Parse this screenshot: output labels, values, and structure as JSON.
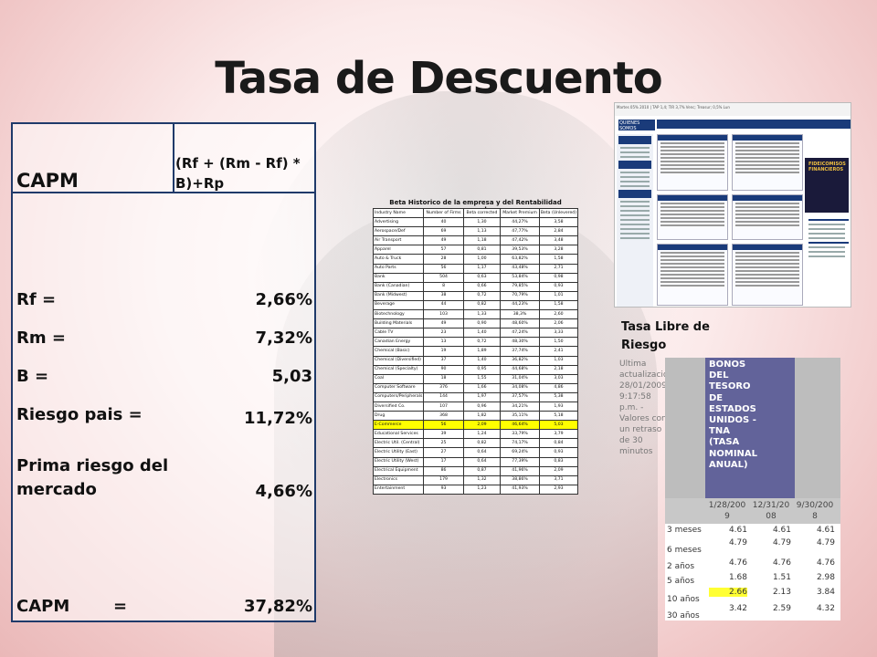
{
  "title": "Tasa de Descuento",
  "capm": {
    "header_label": "CAPM",
    "formula": "(Rf + (Rm - Rf) * B)+Rp",
    "rows": [
      {
        "label": "Rf =",
        "value": "2,66%"
      },
      {
        "label": "Rm =",
        "value": "7,32%"
      },
      {
        "label": "B =",
        "value": "5,03"
      },
      {
        "label": "Riesgo pais =",
        "value": "11,72%"
      },
      {
        "label": "Prima riesgo del mercado",
        "value": "4,66%"
      }
    ],
    "result_label": "CAPM",
    "result_eq": "=",
    "result_value": "37,82%"
  },
  "beta_table": {
    "title": "Beta Historico de la empresa y del Rentabilidad mercado",
    "headers": [
      "Industry Name",
      "Number of Firms",
      "Beta corrected",
      "Market Premium",
      "Beta (Unlevered)"
    ],
    "rows": [
      [
        "Advertising",
        "40",
        "1,30",
        "44,27%",
        "3,58"
      ],
      [
        "Aerospace/Def",
        "69",
        "1,13",
        "47,77%",
        "2,84"
      ],
      [
        "Air Transport",
        "49",
        "1,18",
        "47,42%",
        "3,48"
      ],
      [
        "Apparel",
        "57",
        "0,81",
        "39,53%",
        "3,28"
      ],
      [
        "Auto & Truck",
        "28",
        "1,00",
        "63,82%",
        "1,58"
      ],
      [
        "Auto Parts",
        "56",
        "1,17",
        "43,48%",
        "2,71"
      ],
      [
        "Bank",
        "504",
        "0,63",
        "53,84%",
        "0,98"
      ],
      [
        "Bank (Canadian)",
        "8",
        "0,66",
        "79,85%",
        "0,93"
      ],
      [
        "Bank (Midwest)",
        "38",
        "0,72",
        "70,79%",
        "1,01"
      ],
      [
        "Beverage",
        "44",
        "0,82",
        "44,23%",
        "1,58"
      ],
      [
        "Biotechnology",
        "103",
        "1,33",
        "38,3%",
        "2,60"
      ],
      [
        "Building Materials",
        "49",
        "0,90",
        "48,60%",
        "2,06"
      ],
      [
        "Cable TV",
        "23",
        "1,40",
        "47,24%",
        "3,33"
      ],
      [
        "Canadian Energy",
        "13",
        "0,72",
        "48,30%",
        "1,50"
      ],
      [
        "Chemical (Basic)",
        "19",
        "1,89",
        "37,74%",
        "2,41"
      ],
      [
        "Chemical (Diversified)",
        "37",
        "1,40",
        "36,82%",
        "1,03"
      ],
      [
        "Chemical (Specialty)",
        "90",
        "0,95",
        "44,68%",
        "2,18"
      ],
      [
        "Coal",
        "18",
        "1,55",
        "31,04%",
        "3,03"
      ],
      [
        "Computer Software",
        "376",
        "1,66",
        "34,08%",
        "4,86"
      ],
      [
        "Computers/Peripherals",
        "144",
        "1,97",
        "37,57%",
        "5,38"
      ],
      [
        "Diversified Co.",
        "107",
        "0,96",
        "34,21%",
        "1,93"
      ],
      [
        "Drug",
        "368",
        "1,82",
        "35,11%",
        "5,18"
      ],
      [
        "E-Commerce",
        "56",
        "2,09",
        "46,64%",
        "5,03"
      ],
      [
        "Educational Services",
        "39",
        "1,24",
        "33,79%",
        "3,79"
      ],
      [
        "Electric Util. (Central)",
        "25",
        "0,82",
        "74,17%",
        "0,84"
      ],
      [
        "Electric Utility (East)",
        "27",
        "0,64",
        "69,24%",
        "0,93"
      ],
      [
        "Electric Utility (West)",
        "17",
        "0,64",
        "77,39%",
        "0,83"
      ],
      [
        "Electrical Equipment",
        "86",
        "0,87",
        "41,96%",
        "2,09"
      ],
      [
        "Electronics",
        "179",
        "1,32",
        "38,86%",
        "3,71"
      ],
      [
        "Entertainment",
        "93",
        "1,23",
        "41,93%",
        "2,93"
      ]
    ],
    "highlight_row": 22
  },
  "website": {
    "topbar": "Martes 05% 2010 | TAP 1,4; TIR 3,7% Venc; Treasur; 0,5% Lun",
    "logo": "QUIENES SOMOS",
    "nav": [
      "INICIO",
      "NOTICIAS",
      "COTIZACIONES",
      "MERCADOS",
      "INFORMES",
      "SERVICIOS"
    ],
    "ad_text": "FIDEICOMISOS FINANCIEROS"
  },
  "risk_free": {
    "title_line1": "Tasa Libre de",
    "title_line2": "Riesgo",
    "note": "Ultima actualización: 28/01/2009 9:17:58 p.m. - Valores con un retraso de 30 minutos",
    "bond_label": "BONOS DEL TESORO DE ESTADOS UNIDOS - TNA (TASA NOMINAL ANUAL)",
    "dates": [
      "1/28/2009",
      "12/31/2008",
      "9/30/2008"
    ],
    "rows": [
      {
        "label": "3 meses",
        "values": [
          "4.61",
          "4.61",
          "4.61"
        ]
      },
      {
        "label": "6 meses",
        "values": [
          "4.79",
          "4.79",
          "4.79"
        ]
      },
      {
        "label": "2 años",
        "values": [
          "4.76",
          "4.76",
          "4.76"
        ]
      },
      {
        "label": "5 años",
        "values": [
          "1.68",
          "1.51",
          "2.98"
        ]
      },
      {
        "label": "10 años",
        "values": [
          "2.66",
          "2.13",
          "3.84"
        ]
      },
      {
        "label": "30 años",
        "values": [
          "3.42",
          "2.59",
          "4.32"
        ]
      }
    ],
    "highlight": {
      "row": 4,
      "col": 0
    }
  }
}
